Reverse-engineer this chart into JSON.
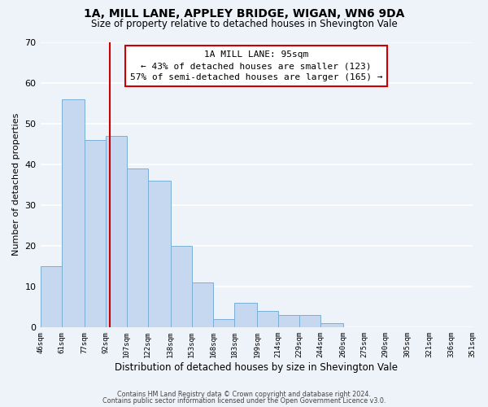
{
  "title_line1": "1A, MILL LANE, APPLEY BRIDGE, WIGAN, WN6 9DA",
  "title_line2": "Size of property relative to detached houses in Shevington Vale",
  "xlabel": "Distribution of detached houses by size in Shevington Vale",
  "ylabel": "Number of detached properties",
  "bar_edges": [
    46,
    61,
    77,
    92,
    107,
    122,
    138,
    153,
    168,
    183,
    199,
    214,
    229,
    244,
    260,
    275,
    290,
    305,
    321,
    336,
    351
  ],
  "bar_heights": [
    15,
    56,
    46,
    47,
    39,
    36,
    20,
    11,
    2,
    6,
    4,
    3,
    3,
    1,
    0,
    0,
    0,
    0,
    0,
    0
  ],
  "bar_color": "#c5d8f0",
  "bar_edgecolor": "#7aafd4",
  "property_line_x": 95,
  "property_label": "1A MILL LANE: 95sqm",
  "annotation_line1": "← 43% of detached houses are smaller (123)",
  "annotation_line2": "57% of semi-detached houses are larger (165) →",
  "box_color": "#ffffff",
  "box_edgecolor": "#cc0000",
  "vline_color": "#cc0000",
  "ylim": [
    0,
    70
  ],
  "yticks": [
    0,
    10,
    20,
    30,
    40,
    50,
    60,
    70
  ],
  "tick_labels": [
    "46sqm",
    "61sqm",
    "77sqm",
    "92sqm",
    "107sqm",
    "122sqm",
    "138sqm",
    "153sqm",
    "168sqm",
    "183sqm",
    "199sqm",
    "214sqm",
    "229sqm",
    "244sqm",
    "260sqm",
    "275sqm",
    "290sqm",
    "305sqm",
    "321sqm",
    "336sqm",
    "351sqm"
  ],
  "footer_line1": "Contains HM Land Registry data © Crown copyright and database right 2024.",
  "footer_line2": "Contains public sector information licensed under the Open Government Licence v3.0.",
  "background_color": "#eef2f9",
  "grid_color": "#ffffff",
  "title1_fontsize": 10,
  "title2_fontsize": 8.5,
  "xlabel_fontsize": 8.5,
  "ylabel_fontsize": 8,
  "xtick_fontsize": 6.5,
  "ytick_fontsize": 8,
  "footer_fontsize": 5.8,
  "annot_fontsize": 8
}
